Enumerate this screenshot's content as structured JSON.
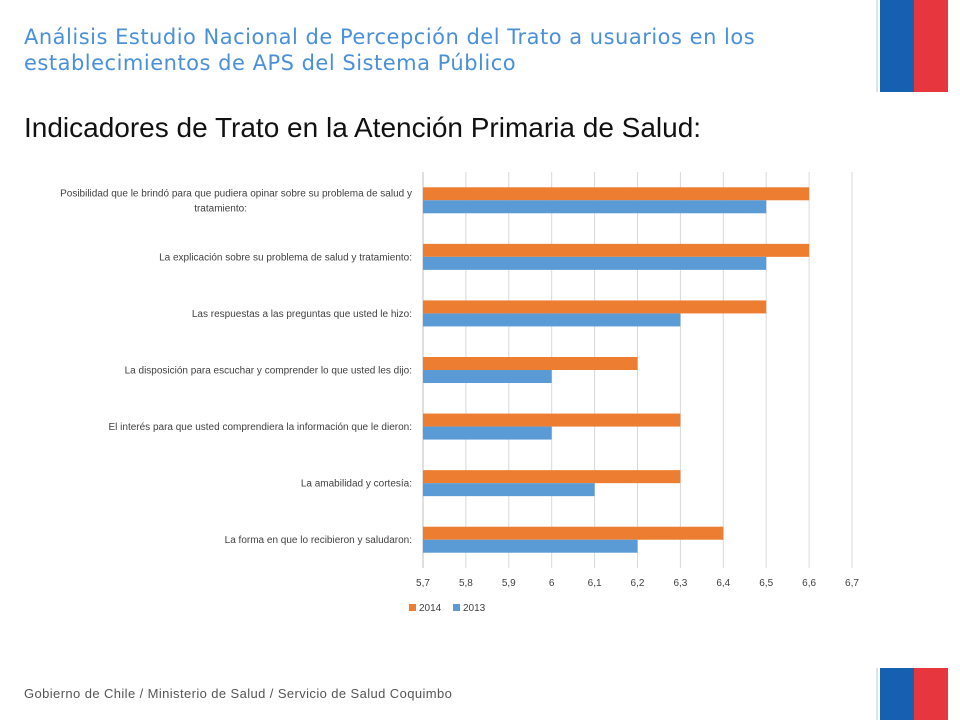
{
  "header": {
    "subtitle": "Análisis Estudio Nacional de Percepción del Trato a usuarios en los establecimientos de APS del Sistema Público",
    "title": "Indicadores de Trato en la Atención Primaria de Salud:"
  },
  "footer": {
    "text": "Gobierno de Chile / Ministerio de Salud / Servicio de Salud Coquimbo"
  },
  "colors": {
    "flag_blue": "#1560b0",
    "flag_red": "#e8363f",
    "series_2014": "#ed7d31",
    "series_2013": "#5b9bd5",
    "subtitle": "#4a90d9"
  },
  "chart_data": {
    "type": "bar",
    "orientation": "horizontal",
    "categories": [
      [
        "Posibilidad que le brindó para que pudiera opinar sobre su problema de salud y",
        "tratamiento:"
      ],
      [
        "La explicación sobre su problema de salud y tratamiento:"
      ],
      [
        "Las respuestas a las preguntas que usted le hizo:"
      ],
      [
        "La disposición para escuchar y comprender lo que usted les dijo:"
      ],
      [
        "El interés para que usted comprendiera la información que le dieron:"
      ],
      [
        "La amabilidad y cortesía:"
      ],
      [
        "La forma en que lo recibieron y saludaron:"
      ]
    ],
    "series": [
      {
        "name": "2014",
        "color": "#ed7d31",
        "values": [
          6.6,
          6.6,
          6.5,
          6.2,
          6.3,
          6.3,
          6.4
        ]
      },
      {
        "name": "2013",
        "color": "#5b9bd5",
        "values": [
          6.5,
          6.5,
          6.3,
          6.0,
          6.0,
          6.1,
          6.2
        ]
      }
    ],
    "xlim": [
      5.7,
      6.7
    ],
    "x_ticks": [
      "5,7",
      "5,8",
      "5,9",
      "6",
      "6,1",
      "6,2",
      "6,3",
      "6,4",
      "6,5",
      "6,6",
      "6,7"
    ],
    "grid": "vertical",
    "legend": "bottom"
  }
}
